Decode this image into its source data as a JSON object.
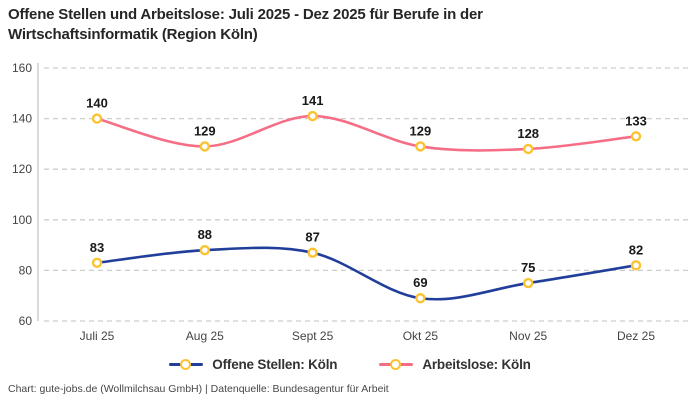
{
  "header": {
    "title": "Offene Stellen und Arbeitslose: Juli 2025 - Dez 2025 für Berufe in der Wirtschaftsinformatik (Region Köln)"
  },
  "footer": {
    "text": "Chart: gute-jobs.de (Wollmilchsau GmbH) | Datenquelle: Bundesagentur für Arbeit"
  },
  "chart_data": {
    "type": "line",
    "title": "Offene Stellen und Arbeitslose: Juli 2025 - Dez 2025 für Berufe in der Wirtschaftsinformatik (Region Köln)",
    "categories": [
      "Juli 25",
      "Aug 25",
      "Sept 25",
      "Okt 25",
      "Nov 25",
      "Dez 25"
    ],
    "series": [
      {
        "name": "Offene Stellen: Köln",
        "values": [
          83,
          88,
          87,
          69,
          75,
          82
        ],
        "color": "#213f9a"
      },
      {
        "name": "Arbeitslose: Köln",
        "values": [
          140,
          129,
          141,
          129,
          128,
          133
        ],
        "color": "#f56e85"
      }
    ],
    "marker": {
      "stroke": "#fcc331",
      "fill": "#ffffff"
    },
    "ylim": [
      60,
      160
    ],
    "y_ticks": [
      60,
      80,
      100,
      120,
      140,
      160
    ],
    "xlabel": "",
    "ylabel": "",
    "grid": "horizontal dashed",
    "smooth": true,
    "data_labels": true,
    "legend_position": "bottom"
  },
  "colors": {
    "background": "#ffffff",
    "grid_line": "#cdcdcd",
    "axis_line": "#b3b3b3",
    "tick_label": "#444444",
    "data_label": "#191919",
    "title": "#262626",
    "legend_label": "#333333",
    "footer": "#474747"
  }
}
